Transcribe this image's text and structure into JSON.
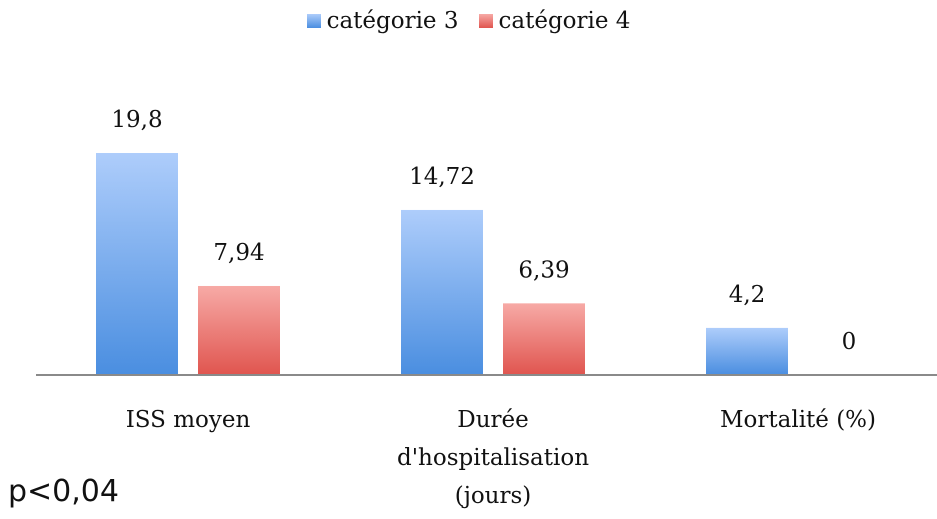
{
  "chart_data": {
    "type": "bar",
    "categories": [
      [
        "ISS moyen"
      ],
      [
        "Durée",
        "d'hospitalisation",
        "(jours)"
      ],
      [
        "Mortalité (%)"
      ]
    ],
    "series": [
      {
        "name": "catégorie 3",
        "values": [
          19.8,
          14.72,
          4.2
        ],
        "labels": [
          "19,8",
          "14,72",
          "4,2"
        ],
        "color_top": "#aecdfb",
        "color_bottom": "#4a8ee0"
      },
      {
        "name": "catégorie 4",
        "values": [
          7.94,
          6.39,
          0
        ],
        "labels": [
          "7,94",
          "6,39",
          "0"
        ],
        "color_top": "#f7aaa6",
        "color_bottom": "#e0554f"
      }
    ],
    "ylim": [
      0,
      20
    ],
    "grid": false,
    "legend_position": "top-center",
    "axis_color": "#8a8a8a"
  },
  "footnote": "p<0,04"
}
